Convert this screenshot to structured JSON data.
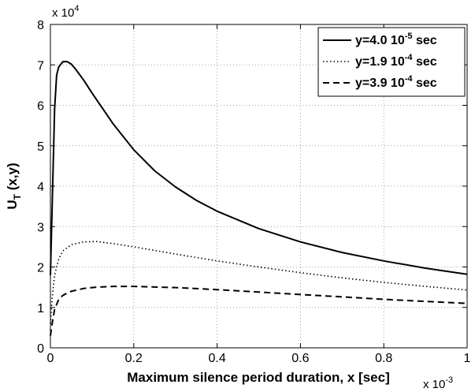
{
  "chart_data": {
    "type": "line",
    "title": "",
    "xlabel": "Maximum silence period duration, x [sec]",
    "ylabel_main": "U",
    "ylabel_sub": "T",
    "ylabel_rest": " (x,y)",
    "x_multiplier_base": "x 10",
    "x_multiplier_exp": "-3",
    "y_multiplier_base": "x 10",
    "y_multiplier_exp": "4",
    "xlim": [
      0,
      1
    ],
    "ylim": [
      0,
      8
    ],
    "x_ticks": [
      0,
      0.2,
      0.4,
      0.6,
      0.8,
      1
    ],
    "x_tick_labels": [
      "0",
      "0.2",
      "0.4",
      "0.6",
      "0.8",
      "1"
    ],
    "y_ticks": [
      0,
      1,
      2,
      3,
      4,
      5,
      6,
      7,
      8
    ],
    "y_tick_labels": [
      "0",
      "1",
      "2",
      "3",
      "4",
      "5",
      "6",
      "7",
      "8"
    ],
    "grid": true,
    "legend_position": "top-right",
    "series": [
      {
        "name_prefix": "y=4.0 10",
        "name_exp": "-5",
        "name_suffix": " sec",
        "style": "solid",
        "x": [
          0.0,
          0.005,
          0.01,
          0.015,
          0.02,
          0.03,
          0.04,
          0.05,
          0.06,
          0.08,
          0.1,
          0.12,
          0.15,
          0.2,
          0.25,
          0.3,
          0.35,
          0.4,
          0.5,
          0.6,
          0.7,
          0.8,
          0.9,
          1.0
        ],
        "y": [
          1.8,
          3.8,
          5.9,
          6.75,
          6.95,
          7.08,
          7.08,
          7.02,
          6.9,
          6.62,
          6.3,
          6.0,
          5.55,
          4.9,
          4.38,
          3.98,
          3.65,
          3.38,
          2.95,
          2.62,
          2.36,
          2.15,
          1.97,
          1.82
        ]
      },
      {
        "name_prefix": "y=1.9 10",
        "name_exp": "-4",
        "name_suffix": " sec",
        "style": "dotted",
        "x": [
          0.0,
          0.005,
          0.01,
          0.02,
          0.03,
          0.05,
          0.08,
          0.11,
          0.15,
          0.2,
          0.3,
          0.4,
          0.5,
          0.6,
          0.7,
          0.8,
          0.9,
          1.0
        ],
        "y": [
          0.6,
          1.3,
          1.8,
          2.2,
          2.4,
          2.55,
          2.62,
          2.63,
          2.58,
          2.5,
          2.32,
          2.15,
          2.0,
          1.86,
          1.73,
          1.62,
          1.52,
          1.43
        ]
      },
      {
        "name_prefix": "y=3.9 10",
        "name_exp": "-4",
        "name_suffix": " sec",
        "style": "dashed",
        "x": [
          0.0,
          0.005,
          0.01,
          0.02,
          0.03,
          0.05,
          0.08,
          0.11,
          0.15,
          0.2,
          0.3,
          0.4,
          0.5,
          0.6,
          0.7,
          0.8,
          0.9,
          1.0
        ],
        "y": [
          0.3,
          0.65,
          0.95,
          1.2,
          1.3,
          1.4,
          1.47,
          1.5,
          1.52,
          1.52,
          1.49,
          1.44,
          1.38,
          1.32,
          1.26,
          1.2,
          1.15,
          1.1
        ]
      }
    ]
  }
}
